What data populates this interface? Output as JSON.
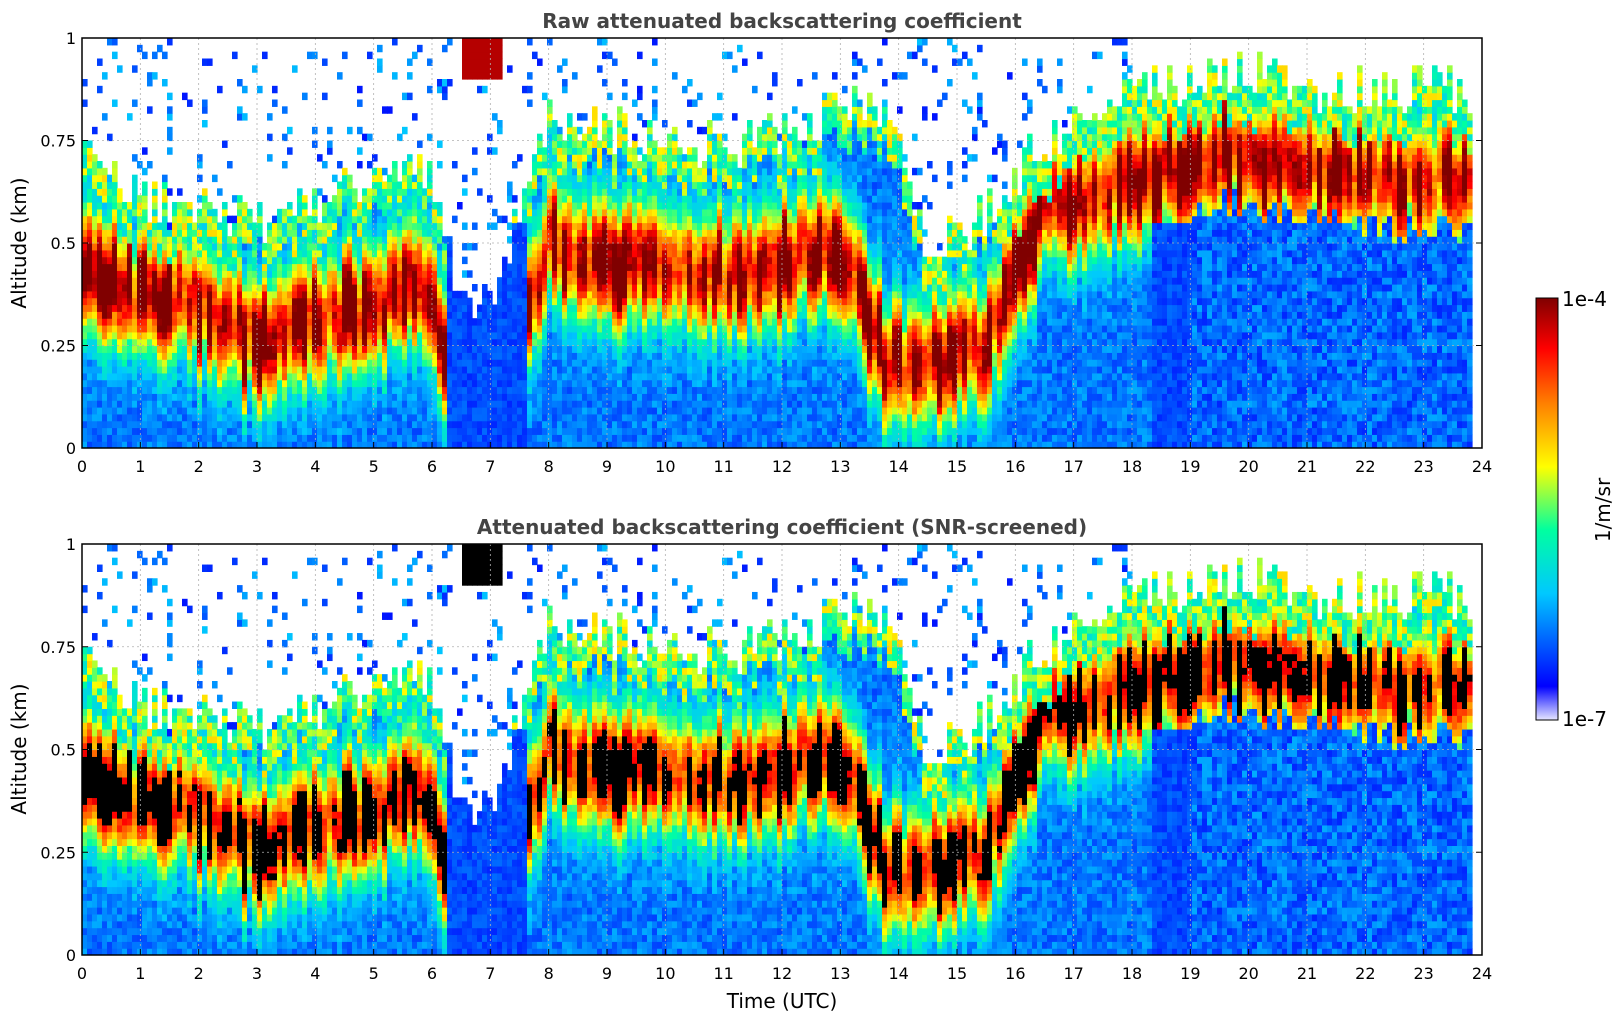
{
  "colors": {
    "nodata": "#ffffff",
    "saturated_masked": "#000000",
    "grid": "#b0b0b0",
    "title": "#444444",
    "colormap": [
      "#e6e6ff",
      "#0000ff",
      "#00c8ff",
      "#00ffa0",
      "#ffff00",
      "#ff8000",
      "#ff0000",
      "#800000"
    ]
  },
  "colorbar": {
    "max_label": "1e-4",
    "min_label": "1e-7",
    "unit_label": "1/m/sr",
    "scale": "log",
    "range": [
      1e-07,
      0.0001
    ]
  },
  "chart_data": [
    {
      "type": "heatmap",
      "title": "Raw attenuated backscattering coefficient",
      "xlabel": "",
      "ylabel": "Altitude (km)",
      "xlim": [
        0,
        24
      ],
      "ylim": [
        0,
        1
      ],
      "xticks": [
        "0",
        "1",
        "2",
        "3",
        "4",
        "5",
        "6",
        "7",
        "8",
        "9",
        "10",
        "11",
        "12",
        "13",
        "14",
        "15",
        "16",
        "17",
        "18",
        "19",
        "20",
        "21",
        "22",
        "23",
        "24"
      ],
      "yticks": [
        "0",
        "0.25",
        "0.5",
        "0.75",
        "1"
      ],
      "grid": true,
      "x_units": "hours UTC",
      "y_units": "km",
      "approx_layer": {
        "time_h": [
          0,
          1,
          2,
          3,
          4,
          5,
          6,
          6.5,
          7,
          8,
          9,
          10,
          11,
          12,
          13,
          13.8,
          14.5,
          15.5,
          16.5,
          17.5,
          18.5,
          19.5,
          20.5,
          21.5,
          22.5,
          23.8
        ],
        "top_km": [
          0.68,
          0.55,
          0.55,
          0.5,
          0.55,
          0.6,
          0.62,
          0.3,
          0.3,
          0.75,
          0.72,
          0.7,
          0.68,
          0.72,
          0.78,
          0.8,
          0.42,
          0.52,
          0.7,
          0.78,
          0.83,
          0.88,
          0.85,
          0.82,
          0.83,
          0.82
        ],
        "peak_km": [
          0.45,
          0.38,
          0.35,
          0.25,
          0.3,
          0.35,
          0.4,
          0.0,
          0.0,
          0.5,
          0.45,
          0.45,
          0.42,
          0.45,
          0.5,
          0.2,
          0.2,
          0.25,
          0.6,
          0.62,
          0.68,
          0.72,
          0.7,
          0.68,
          0.66,
          0.65
        ]
      }
    },
    {
      "type": "heatmap",
      "title": "Attenuated backscattering coefficient (SNR-screened)",
      "xlabel": "Time (UTC)",
      "ylabel": "Altitude (km)",
      "xlim": [
        0,
        24
      ],
      "ylim": [
        0,
        1
      ],
      "xticks": [
        "0",
        "1",
        "2",
        "3",
        "4",
        "5",
        "6",
        "7",
        "8",
        "9",
        "10",
        "11",
        "12",
        "13",
        "14",
        "15",
        "16",
        "17",
        "18",
        "19",
        "20",
        "21",
        "22",
        "23",
        "24"
      ],
      "yticks": [
        "0",
        "0.25",
        "0.5",
        "0.75",
        "1"
      ],
      "grid": true,
      "x_units": "hours UTC",
      "y_units": "km"
    }
  ]
}
